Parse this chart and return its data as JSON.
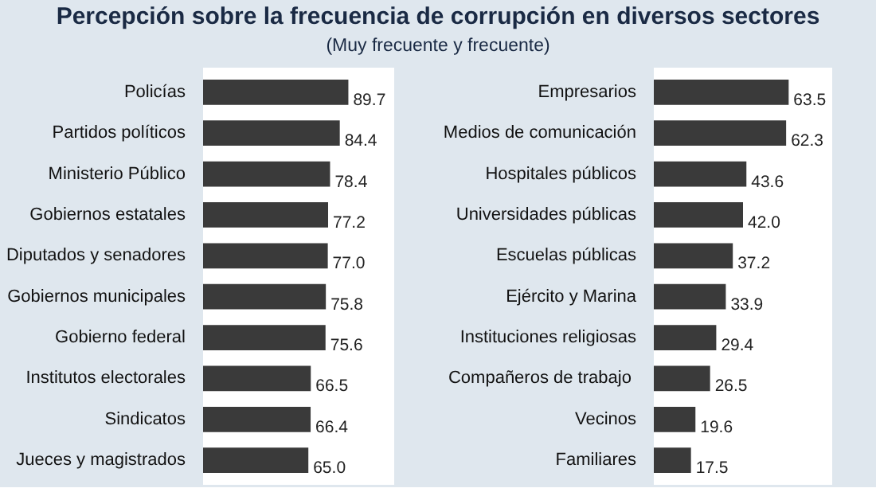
{
  "chart_data": [
    {
      "type": "bar",
      "orientation": "horizontal",
      "title": "Percepción sobre la frecuencia de corrupción en diversos sectores",
      "subtitle": "(Muy frecuente y frecuente)",
      "categories": [
        "Policías",
        "Partidos políticos",
        "Ministerio Público",
        "Gobiernos estatales",
        "Diputados y senadores",
        "Gobiernos municipales",
        "Gobierno federal",
        "Institutos electorales",
        "Sindicatos",
        "Jueces y magistrados"
      ],
      "values": [
        89.7,
        84.4,
        78.4,
        77.2,
        77.0,
        75.8,
        75.6,
        66.5,
        66.4,
        65.0
      ],
      "value_labels": [
        "89.7",
        "84.4",
        "78.4",
        "77.2",
        "77.0",
        "75.8",
        "75.6",
        "66.5",
        "66.4",
        "65.0"
      ],
      "color": "#3a3a3a",
      "xlim": [
        0,
        118
      ],
      "tick_labels": "y"
    },
    {
      "type": "bar",
      "orientation": "horizontal",
      "categories": [
        "Empresarios",
        "Medios de comunicación",
        "Hospitales públicos",
        "Universidades públicas",
        "Escuelas públicas",
        "Ejército y Marina",
        "Instituciones religiosas",
        "Compañeros  de trabajo",
        "Vecinos",
        "Familiares"
      ],
      "values": [
        63.5,
        62.3,
        43.6,
        42.0,
        37.2,
        33.9,
        29.4,
        26.5,
        19.6,
        17.5
      ],
      "value_labels": [
        "63.5",
        "62.3",
        "43.6",
        "42.0",
        "37.2",
        "33.9",
        "29.4",
        "26.5",
        "19.6",
        "17.5"
      ],
      "color": "#3a3a3a",
      "xlim": [
        0,
        84
      ],
      "tick_labels": "y"
    }
  ]
}
